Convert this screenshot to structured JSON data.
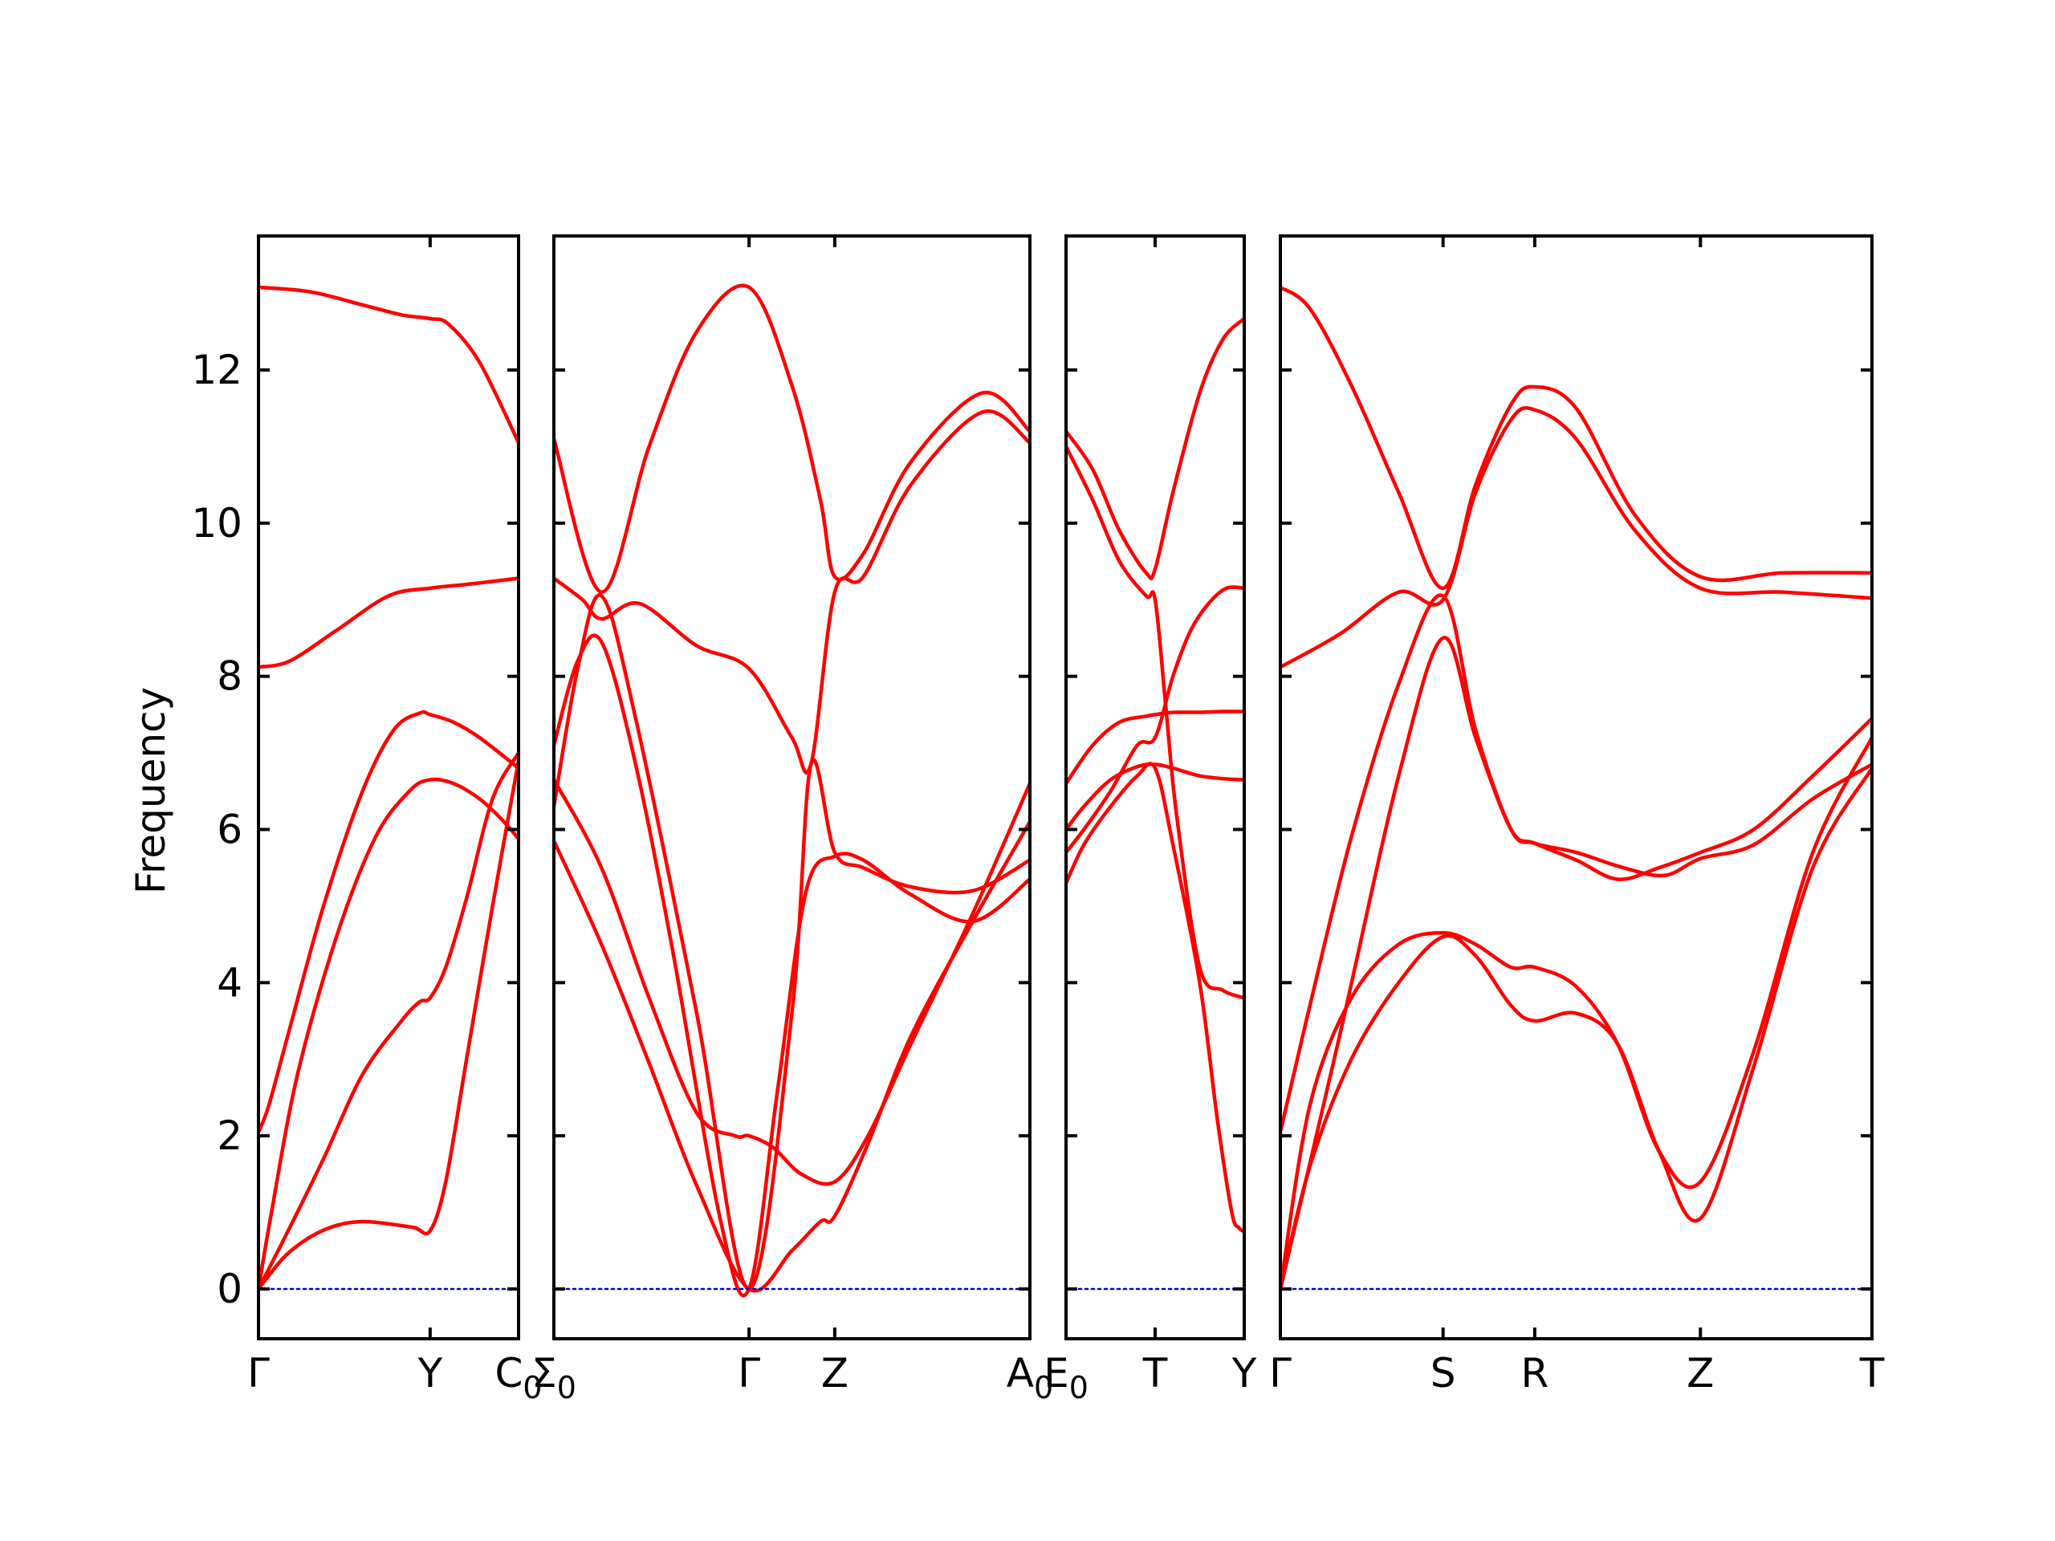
{
  "chart_data": {
    "type": "line",
    "title": "",
    "ylabel": "Frequency",
    "xlabel": "",
    "ylim": [
      -0.65,
      13.75
    ],
    "yticks": [
      0,
      2,
      4,
      6,
      8,
      10,
      12
    ],
    "grid": false,
    "legend": "none",
    "colors": {
      "bands": "#ff0000",
      "zero_line": "#0000cc",
      "axes": "#000000"
    },
    "panels": [
      {
        "xticks": [
          {
            "pos": 0,
            "label": "Γ"
          },
          {
            "pos": 0.66,
            "label": "Y"
          },
          {
            "pos": 1,
            "label": "C",
            "sub": "0"
          }
        ],
        "bands": [
          {
            "x": [
              0,
              0.2,
              0.4,
              0.55,
              0.66,
              0.73,
              0.85,
              1
            ],
            "y": [
              13.08,
              13.02,
              12.85,
              12.72,
              12.67,
              12.6,
              12.1,
              11.05
            ]
          },
          {
            "x": [
              0,
              0.12,
              0.3,
              0.5,
              0.66,
              0.8,
              1
            ],
            "y": [
              8.12,
              8.2,
              8.6,
              9.05,
              9.15,
              9.2,
              9.28
            ]
          },
          {
            "x": [
              0,
              0.04,
              0.12,
              0.25,
              0.4,
              0.52,
              0.62,
              0.66,
              0.75,
              0.85,
              1
            ],
            "y": [
              2.05,
              2.4,
              3.4,
              5.0,
              6.5,
              7.3,
              7.52,
              7.5,
              7.4,
              7.2,
              6.8
            ]
          },
          {
            "x": [
              0,
              0.05,
              0.15,
              0.3,
              0.45,
              0.58,
              0.66,
              0.75,
              0.85,
              0.93,
              1
            ],
            "y": [
              0,
              1.0,
              2.8,
              4.6,
              5.9,
              6.5,
              6.65,
              6.6,
              6.4,
              6.15,
              5.88
            ]
          },
          {
            "x": [
              0,
              0.12,
              0.25,
              0.4,
              0.55,
              0.62,
              0.66,
              0.72,
              0.8,
              0.9,
              1
            ],
            "y": [
              0,
              0.8,
              1.7,
              2.8,
              3.5,
              3.75,
              3.8,
              4.2,
              5.1,
              6.4,
              7.0
            ]
          },
          {
            "x": [
              0,
              0.1,
              0.2,
              0.3,
              0.4,
              0.5,
              0.6,
              0.66,
              0.72,
              0.8,
              0.9,
              1
            ],
            "y": [
              0,
              0.42,
              0.68,
              0.83,
              0.88,
              0.85,
              0.8,
              0.76,
              1.4,
              3.0,
              5.0,
              6.9
            ]
          },
          {
            "x": [
              0,
              1
            ],
            "y": [
              0,
              0
            ],
            "zero": true
          }
        ]
      },
      {
        "xticks": [
          {
            "pos": 0,
            "label": "Σ",
            "sub": "0"
          },
          {
            "pos": 0.41,
            "label": "Γ"
          },
          {
            "pos": 0.59,
            "label": "Z"
          },
          {
            "pos": 1,
            "label": "A",
            "sub": "0"
          }
        ],
        "bands": [
          {
            "x": [
              0,
              0.1,
              0.2,
              0.3,
              0.41,
              0.5,
              0.56,
              0.59,
              0.65,
              0.75,
              0.9,
              1
            ],
            "y": [
              11.1,
              9.1,
              11.0,
              12.5,
              13.08,
              11.8,
              10.3,
              9.3,
              9.6,
              10.8,
              11.7,
              11.2
            ]
          },
          {
            "x": [
              0,
              0.06,
              0.1,
              0.18,
              0.3,
              0.41,
              0.5,
              0.54,
              0.59,
              0.65,
              0.75,
              0.9,
              1
            ],
            "y": [
              9.28,
              9.0,
              8.75,
              8.95,
              8.4,
              8.1,
              7.2,
              6.85,
              9.1,
              9.3,
              10.5,
              11.45,
              11.05
            ]
          },
          {
            "x": [
              0,
              0.05,
              0.1,
              0.17,
              0.3,
              0.41,
              0.5,
              0.54,
              0.59,
              0.65,
              0.75,
              0.88,
              1
            ],
            "y": [
              6.3,
              8.1,
              9.05,
              7.5,
              3.6,
              0,
              3.6,
              6.85,
              5.7,
              5.5,
              5.25,
              5.2,
              5.6
            ]
          },
          {
            "x": [
              0,
              0.05,
              0.1,
              0.17,
              0.25,
              0.35,
              0.41,
              0.47,
              0.53,
              0.59,
              0.65,
              0.75,
              0.88,
              1
            ],
            "y": [
              7.1,
              8.2,
              8.45,
              6.9,
              4.4,
              0.9,
              0,
              2.6,
              5.2,
              5.65,
              5.6,
              5.15,
              4.8,
              5.35
            ]
          },
          {
            "x": [
              0,
              0.1,
              0.2,
              0.3,
              0.38,
              0.41,
              0.46,
              0.52,
              0.59,
              0.66,
              0.75,
              0.88,
              1
            ],
            "y": [
              6.65,
              5.5,
              3.8,
              2.3,
              2.0,
              2.0,
              1.85,
              1.5,
              1.4,
              2.0,
              3.2,
              4.9,
              6.6
            ]
          },
          {
            "x": [
              0,
              0.1,
              0.2,
              0.3,
              0.41,
              0.5,
              0.56,
              0.59,
              0.66,
              0.75,
              0.88,
              1
            ],
            "y": [
              5.85,
              4.5,
              2.95,
              1.35,
              0,
              0.5,
              0.88,
              0.95,
              1.9,
              3.3,
              4.8,
              6.1
            ]
          },
          {
            "x": [
              0,
              1
            ],
            "y": [
              0,
              0
            ],
            "zero": true
          }
        ]
      },
      {
        "xticks": [
          {
            "pos": 0,
            "label": "E",
            "sub": "0"
          },
          {
            "pos": 0.5,
            "label": "T"
          },
          {
            "pos": 1,
            "label": "Y"
          }
        ],
        "bands": [
          {
            "x": [
              0,
              0.15,
              0.3,
              0.45,
              0.5,
              0.6,
              0.75,
              0.88,
              1
            ],
            "y": [
              11.2,
              10.7,
              9.9,
              9.35,
              9.4,
              10.4,
              11.7,
              12.4,
              12.67
            ]
          },
          {
            "x": [
              0,
              0.15,
              0.3,
              0.45,
              0.5,
              0.56,
              0.62,
              0.75,
              0.88,
              1
            ],
            "y": [
              11.0,
              10.3,
              9.5,
              9.05,
              9.0,
              7.6,
              6.2,
              4.2,
              3.9,
              3.8
            ]
          },
          {
            "x": [
              0,
              0.15,
              0.3,
              0.45,
              0.5,
              0.56,
              0.62,
              0.75,
              0.88,
              1
            ],
            "y": [
              6.6,
              7.1,
              7.4,
              7.48,
              7.5,
              7.52,
              7.53,
              7.53,
              7.54,
              7.54
            ]
          },
          {
            "x": [
              0,
              0.1,
              0.25,
              0.4,
              0.5,
              0.6,
              0.7,
              0.8,
              0.9,
              1
            ],
            "y": [
              5.7,
              6.0,
              6.5,
              7.1,
              7.2,
              8.0,
              8.6,
              8.95,
              9.15,
              9.15
            ]
          },
          {
            "x": [
              0,
              0.1,
              0.25,
              0.4,
              0.5,
              0.6,
              0.75,
              0.9,
              1
            ],
            "y": [
              6.0,
              6.3,
              6.65,
              6.82,
              6.85,
              6.8,
              6.7,
              6.66,
              6.65
            ]
          },
          {
            "x": [
              0,
              0.1,
              0.25,
              0.4,
              0.5,
              0.6,
              0.75,
              0.85,
              0.93,
              0.97,
              1
            ],
            "y": [
              5.3,
              5.8,
              6.3,
              6.7,
              6.8,
              5.8,
              4.0,
              2.2,
              1.0,
              0.8,
              0.75
            ]
          },
          {
            "x": [
              0,
              1
            ],
            "y": [
              0,
              0
            ],
            "zero": true
          }
        ]
      },
      {
        "xticks": [
          {
            "pos": 0,
            "label": "Γ"
          },
          {
            "pos": 0.275,
            "label": "S"
          },
          {
            "pos": 0.43,
            "label": "R"
          },
          {
            "pos": 0.71,
            "label": "Z"
          },
          {
            "pos": 1,
            "label": "T"
          }
        ],
        "bands": [
          {
            "x": [
              0,
              0.05,
              0.12,
              0.2,
              0.275,
              0.33,
              0.39,
              0.43,
              0.5,
              0.6,
              0.71,
              0.85,
              1
            ],
            "y": [
              13.08,
              12.8,
              11.8,
              10.4,
              9.15,
              10.5,
              11.55,
              11.78,
              11.5,
              10.1,
              9.3,
              9.35,
              9.35
            ]
          },
          {
            "x": [
              0,
              0.1,
              0.2,
              0.275,
              0.33,
              0.39,
              0.43,
              0.5,
              0.6,
              0.71,
              0.85,
              1
            ],
            "y": [
              8.12,
              8.55,
              9.1,
              9.0,
              10.4,
              11.35,
              11.48,
              11.1,
              9.9,
              9.15,
              9.1,
              9.02
            ]
          },
          {
            "x": [
              0,
              0.05,
              0.12,
              0.2,
              0.275,
              0.33,
              0.39,
              0.43,
              0.5,
              0.58,
              0.65,
              0.71,
              0.8,
              0.9,
              1
            ],
            "y": [
              2.05,
              3.7,
              5.9,
              7.9,
              9.05,
              7.3,
              6.0,
              5.82,
              5.7,
              5.5,
              5.4,
              5.62,
              5.8,
              6.4,
              6.85
            ]
          },
          {
            "x": [
              0,
              0.1,
              0.2,
              0.275,
              0.33,
              0.39,
              0.43,
              0.5,
              0.57,
              0.64,
              0.71,
              0.8,
              0.9,
              1
            ],
            "y": [
              0,
              3.3,
              6.7,
              8.5,
              7.2,
              6.0,
              5.82,
              5.6,
              5.35,
              5.5,
              5.7,
              6.0,
              6.7,
              7.45
            ]
          },
          {
            "x": [
              0,
              0.05,
              0.12,
              0.2,
              0.275,
              0.33,
              0.39,
              0.43,
              0.5,
              0.57,
              0.64,
              0.71,
              0.8,
              0.9,
              1
            ],
            "y": [
              0,
              2.4,
              3.8,
              4.5,
              4.65,
              4.5,
              4.2,
              4.2,
              3.95,
              3.2,
              1.8,
              1.4,
              3.1,
              5.7,
              7.2
            ]
          },
          {
            "x": [
              0,
              0.05,
              0.12,
              0.2,
              0.275,
              0.33,
              0.39,
              0.43,
              0.5,
              0.57,
              0.64,
              0.71,
              0.8,
              0.9,
              1
            ],
            "y": [
              0,
              1.6,
              3.0,
              4.0,
              4.6,
              4.35,
              3.7,
              3.5,
              3.6,
              3.2,
              1.8,
              0.92,
              2.9,
              5.5,
              6.8
            ]
          },
          {
            "x": [
              0,
              1
            ],
            "y": [
              0,
              0
            ],
            "zero": true
          }
        ]
      }
    ]
  }
}
